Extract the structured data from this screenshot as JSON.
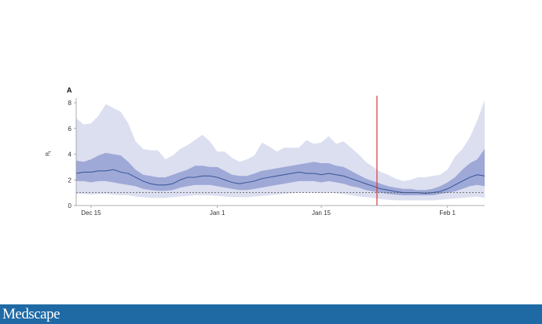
{
  "colors": {
    "outer_band": "#dcdff0",
    "inner_band": "#9fa9d7",
    "median_line": "#3f5c9e",
    "threshold_line": "#555555",
    "intervention_line": "#d9383c",
    "axis": "#999999",
    "footer_bg": "#1f6aa5",
    "footer_text": "#ffffff"
  },
  "footer": {
    "brand": "Medscape",
    "icon": "medscape-logo"
  },
  "chart_data": {
    "type": "area",
    "panel_label": "A",
    "title": "",
    "xlabel": "",
    "ylabel": "R",
    "ylabel_subscript": "t",
    "ylim": [
      0,
      8
    ],
    "yticks": [
      0,
      2,
      4,
      6,
      8
    ],
    "xlim": [
      0,
      55
    ],
    "xticks": [
      {
        "x": 2,
        "label": "Dec 15"
      },
      {
        "x": 19,
        "label": "Jan 1"
      },
      {
        "x": 33,
        "label": "Jan 15"
      },
      {
        "x": 50,
        "label": "Feb 1"
      }
    ],
    "threshold": 1,
    "intervention_x": 40.5,
    "x": [
      0,
      1,
      2,
      3,
      4,
      5,
      6,
      7,
      8,
      9,
      10,
      11,
      12,
      13,
      14,
      15,
      16,
      17,
      18,
      19,
      20,
      21,
      22,
      23,
      24,
      25,
      26,
      27,
      28,
      29,
      30,
      31,
      32,
      33,
      34,
      35,
      36,
      37,
      38,
      39,
      40,
      41,
      42,
      43,
      44,
      45,
      46,
      47,
      48,
      49,
      50,
      51,
      52,
      53,
      54,
      55
    ],
    "series": [
      {
        "name": "median",
        "values": [
          2.5,
          2.6,
          2.6,
          2.7,
          2.7,
          2.8,
          2.6,
          2.5,
          2.2,
          1.9,
          1.7,
          1.6,
          1.6,
          1.7,
          2.0,
          2.2,
          2.2,
          2.3,
          2.3,
          2.2,
          2.0,
          1.8,
          1.7,
          1.8,
          1.9,
          2.1,
          2.2,
          2.3,
          2.4,
          2.5,
          2.6,
          2.5,
          2.5,
          2.4,
          2.5,
          2.4,
          2.3,
          2.1,
          1.9,
          1.7,
          1.5,
          1.3,
          1.2,
          1.1,
          1.0,
          1.0,
          1.0,
          0.95,
          1.0,
          1.1,
          1.3,
          1.6,
          1.9,
          2.2,
          2.4,
          2.3
        ]
      },
      {
        "name": "inner_interval_upper",
        "values": [
          3.5,
          3.4,
          3.6,
          3.9,
          4.1,
          4.0,
          3.9,
          3.4,
          2.8,
          2.4,
          2.3,
          2.2,
          2.2,
          2.4,
          2.6,
          2.8,
          3.1,
          3.1,
          3.0,
          3.0,
          2.7,
          2.4,
          2.3,
          2.3,
          2.5,
          2.7,
          2.8,
          2.9,
          3.0,
          3.1,
          3.2,
          3.3,
          3.4,
          3.3,
          3.3,
          3.1,
          3.0,
          2.7,
          2.4,
          2.1,
          1.9,
          1.7,
          1.5,
          1.4,
          1.3,
          1.3,
          1.2,
          1.2,
          1.3,
          1.5,
          1.8,
          2.2,
          2.8,
          3.3,
          3.6,
          4.4
        ]
      },
      {
        "name": "inner_interval_lower",
        "values": [
          1.9,
          1.9,
          1.8,
          1.9,
          1.9,
          1.8,
          1.7,
          1.6,
          1.5,
          1.3,
          1.2,
          1.15,
          1.15,
          1.2,
          1.4,
          1.5,
          1.6,
          1.6,
          1.6,
          1.5,
          1.4,
          1.3,
          1.2,
          1.2,
          1.3,
          1.4,
          1.5,
          1.6,
          1.7,
          1.8,
          1.9,
          1.9,
          1.9,
          1.8,
          1.9,
          1.8,
          1.7,
          1.5,
          1.4,
          1.2,
          1.1,
          1.0,
          0.9,
          0.85,
          0.8,
          0.8,
          0.8,
          0.8,
          0.8,
          0.9,
          1.0,
          1.1,
          1.3,
          1.5,
          1.6,
          1.5
        ]
      },
      {
        "name": "outer_interval_upper",
        "values": [
          6.8,
          6.3,
          6.4,
          7.0,
          7.9,
          7.6,
          7.3,
          6.4,
          5.0,
          4.4,
          4.3,
          4.3,
          3.6,
          3.9,
          4.4,
          4.7,
          5.1,
          5.5,
          5.0,
          4.2,
          4.2,
          3.7,
          3.4,
          3.6,
          3.9,
          4.9,
          4.6,
          4.2,
          4.5,
          4.5,
          4.5,
          5.1,
          4.8,
          4.9,
          5.4,
          4.8,
          5.0,
          4.5,
          4.0,
          3.4,
          3.0,
          2.6,
          2.4,
          2.1,
          1.9,
          2.0,
          2.2,
          2.2,
          2.3,
          2.4,
          2.8,
          3.8,
          4.4,
          5.3,
          6.6,
          8.2
        ]
      },
      {
        "name": "outer_interval_lower",
        "values": [
          0.9,
          0.9,
          0.85,
          0.9,
          0.9,
          0.85,
          0.8,
          0.8,
          0.7,
          0.65,
          0.6,
          0.6,
          0.6,
          0.65,
          0.7,
          0.75,
          0.8,
          0.8,
          0.8,
          0.75,
          0.7,
          0.65,
          0.65,
          0.65,
          0.7,
          0.75,
          0.8,
          0.85,
          0.9,
          0.95,
          1.0,
          1.0,
          1.0,
          0.95,
          1.0,
          0.95,
          0.9,
          0.8,
          0.7,
          0.65,
          0.6,
          0.5,
          0.45,
          0.4,
          0.4,
          0.4,
          0.4,
          0.4,
          0.4,
          0.45,
          0.5,
          0.55,
          0.6,
          0.65,
          0.7,
          0.6
        ]
      }
    ]
  }
}
